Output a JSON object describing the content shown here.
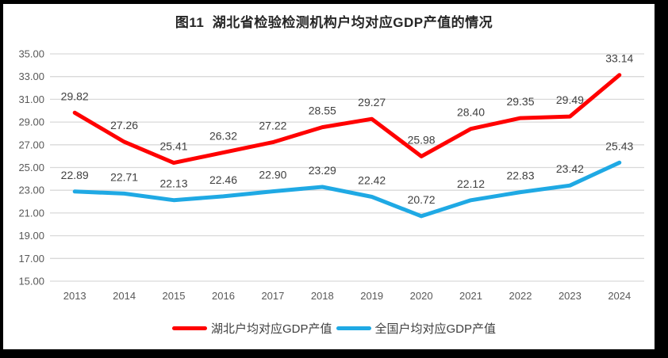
{
  "figure": {
    "title": "图11  湖北省检验检测机构户均对应GDP产值的情况"
  },
  "chart_data": {
    "type": "line",
    "title": "图11  湖北省检验检测机构户均对应GDP产值的情况",
    "categories": [
      "2013",
      "2014",
      "2015",
      "2016",
      "2017",
      "2018",
      "2019",
      "2020",
      "2021",
      "2022",
      "2023",
      "2024"
    ],
    "series": [
      {
        "name": "湖北户均对应GDP产值",
        "color": "#FF0000",
        "values": [
          29.82,
          27.26,
          25.41,
          26.32,
          27.22,
          28.55,
          29.27,
          25.98,
          28.4,
          29.35,
          29.49,
          33.14
        ]
      },
      {
        "name": "全国户均对应GDP产值",
        "color": "#1FA9E4",
        "values": [
          22.89,
          22.71,
          22.13,
          22.46,
          22.9,
          23.29,
          22.42,
          20.72,
          22.12,
          22.83,
          23.42,
          25.43
        ]
      }
    ],
    "xlabel": "",
    "ylabel": "",
    "ylim": [
      15,
      35
    ],
    "ytick_step": 2,
    "ytick_labels": [
      "15.00",
      "17.00",
      "19.00",
      "21.00",
      "23.00",
      "25.00",
      "27.00",
      "29.00",
      "31.00",
      "33.00",
      "35.00"
    ],
    "grid": true,
    "legend_position": "bottom",
    "colors": {
      "gridline": "#D9D9D9",
      "tick_label": "#595959",
      "data_label": "#404040",
      "title": "#262626",
      "frame": "#000000",
      "background": "#FFFFFF"
    }
  }
}
